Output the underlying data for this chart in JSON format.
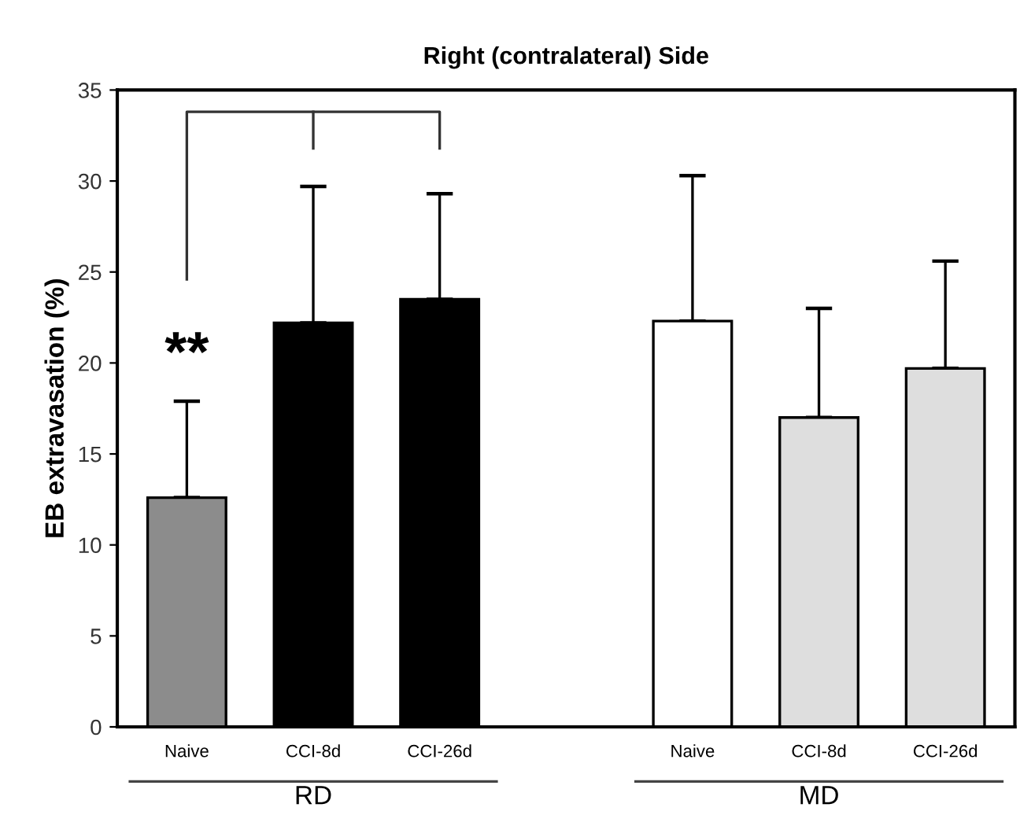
{
  "chart_data": {
    "type": "bar",
    "title": "Right (contralateral) Side",
    "ylabel": "EB extravasation (%)",
    "categories": [
      "Naive",
      "CCI-8d",
      "CCI-26d",
      null,
      "Naive",
      "CCI-8d",
      "CCI-26d"
    ],
    "values": [
      12.6,
      22.2,
      23.5,
      null,
      22.3,
      17.0,
      19.7
    ],
    "errors": [
      [
        12.6,
        17.9
      ],
      [
        22.2,
        29.7
      ],
      [
        23.5,
        29.3
      ],
      null,
      [
        22.3,
        30.3
      ],
      [
        17.0,
        23.0
      ],
      [
        19.7,
        25.6
      ]
    ],
    "colors": [
      "#8c8c8c",
      "#000000",
      "#000000",
      null,
      "#ffffff",
      "#dedede",
      "#dedede"
    ],
    "ylim": [
      0,
      35
    ],
    "yticks": [
      0,
      5,
      10,
      15,
      20,
      25,
      30,
      35
    ],
    "grid": false,
    "annotations": [
      "**",
      "RD",
      "MD"
    ]
  }
}
